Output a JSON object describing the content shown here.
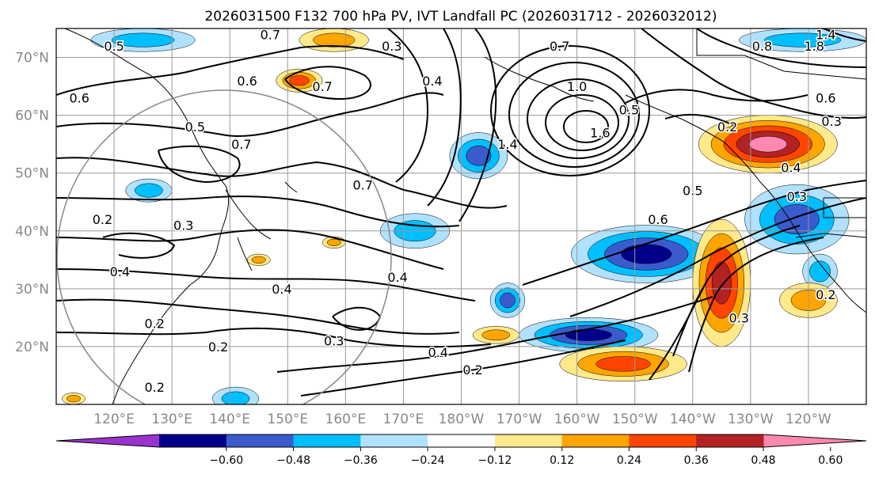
{
  "chart_data": {
    "type": "heatmap",
    "title": "2026031500 F132 700 hPa PV, IVT Landfall PC (2026031712 - 2026032012)",
    "map": {
      "lon_range": [
        110,
        250
      ],
      "lat_range": [
        10,
        75
      ],
      "lon_ticks": [
        {
          "lon": 120,
          "label": "120°E"
        },
        {
          "lon": 130,
          "label": "130°E"
        },
        {
          "lon": 140,
          "label": "140°E"
        },
        {
          "lon": 150,
          "label": "150°E"
        },
        {
          "lon": 160,
          "label": "160°E"
        },
        {
          "lon": 170,
          "label": "170°E"
        },
        {
          "lon": 180,
          "label": "180°W"
        },
        {
          "lon": 190,
          "label": "170°W"
        },
        {
          "lon": 200,
          "label": "160°W"
        },
        {
          "lon": 210,
          "label": "150°W"
        },
        {
          "lon": 220,
          "label": "140°W"
        },
        {
          "lon": 230,
          "label": "130°W"
        },
        {
          "lon": 240,
          "label": "120°W"
        }
      ],
      "lat_ticks": [
        {
          "lat": 20,
          "label": "20°N"
        },
        {
          "lat": 30,
          "label": "30°N"
        },
        {
          "lat": 40,
          "label": "40°N"
        },
        {
          "lat": 50,
          "label": "50°N"
        },
        {
          "lat": 60,
          "label": "60°N"
        },
        {
          "lat": 70,
          "label": "70°N"
        }
      ],
      "grid_lines": true,
      "tick_color": "#888888",
      "reference_circle": {
        "center_lon": 140,
        "center_lat": 35,
        "radius_deg": 25,
        "color": "#888888"
      }
    },
    "colorbar": {
      "orientation": "horizontal",
      "extend": "both",
      "levels": [
        -0.72,
        -0.6,
        -0.48,
        -0.36,
        -0.24,
        -0.12,
        0.12,
        0.24,
        0.36,
        0.48,
        0.6,
        0.72
      ],
      "tick_labels": [
        "−0.60",
        "−0.48",
        "−0.36",
        "−0.24",
        "−0.12",
        "0.12",
        "0.24",
        "0.36",
        "0.48",
        "0.60"
      ],
      "colors": [
        "#9933cc",
        "#00008b",
        "#3a5bcc",
        "#00bfff",
        "#b0e2ff",
        "#ffffff",
        "#ffe98a",
        "#ffa500",
        "#ff4500",
        "#b22222",
        "#ff88b3"
      ]
    },
    "shaded_anomalies": [
      {
        "lon": 183,
        "lat": 53,
        "value": -0.4,
        "rx": 5,
        "ry": 4
      },
      {
        "lon": 126,
        "lat": 47,
        "value": -0.3,
        "rx": 4,
        "ry": 2
      },
      {
        "lon": 172,
        "lat": 40,
        "value": -0.3,
        "rx": 6,
        "ry": 3
      },
      {
        "lon": 188,
        "lat": 28,
        "value": -0.45,
        "rx": 3,
        "ry": 3
      },
      {
        "lon": 212,
        "lat": 36,
        "value": -0.58,
        "rx": 13,
        "ry": 5
      },
      {
        "lon": 202,
        "lat": 22,
        "value": -0.5,
        "rx": 12,
        "ry": 3
      },
      {
        "lon": 238,
        "lat": 42,
        "value": -0.45,
        "rx": 9,
        "ry": 6
      },
      {
        "lon": 242,
        "lat": 33,
        "value": -0.35,
        "rx": 3,
        "ry": 3
      },
      {
        "lon": 141,
        "lat": 11,
        "value": -0.3,
        "rx": 4,
        "ry": 2
      },
      {
        "lon": 239,
        "lat": 73,
        "value": -0.3,
        "rx": 11,
        "ry": 2
      },
      {
        "lon": 125,
        "lat": 73,
        "value": -0.3,
        "rx": 9,
        "ry": 2
      },
      {
        "lon": 158,
        "lat": 73,
        "value": 0.35,
        "rx": 6,
        "ry": 2
      },
      {
        "lon": 152,
        "lat": 66,
        "value": 0.4,
        "rx": 4,
        "ry": 2
      },
      {
        "lon": 233,
        "lat": 55,
        "value": 0.62,
        "rx": 12,
        "ry": 5
      },
      {
        "lon": 225,
        "lat": 31,
        "value": 0.5,
        "rx": 5,
        "ry": 11
      },
      {
        "lon": 208,
        "lat": 17,
        "value": 0.38,
        "rx": 11,
        "ry": 3
      },
      {
        "lon": 186,
        "lat": 22,
        "value": 0.3,
        "rx": 4,
        "ry": 1.5
      },
      {
        "lon": 158,
        "lat": 38,
        "value": 0.3,
        "rx": 2,
        "ry": 1
      },
      {
        "lon": 145,
        "lat": 35,
        "value": 0.35,
        "rx": 2,
        "ry": 1
      },
      {
        "lon": 240,
        "lat": 28,
        "value": 0.3,
        "rx": 5,
        "ry": 3
      },
      {
        "lon": 113,
        "lat": 11,
        "value": 0.3,
        "rx": 2,
        "ry": 1
      }
    ],
    "pv_contour_labels": [
      {
        "text": "0.7",
        "lon": 147,
        "lat": 74
      },
      {
        "text": "0.5",
        "lon": 120,
        "lat": 72
      },
      {
        "text": "0.6",
        "lon": 114,
        "lat": 63
      },
      {
        "text": "0.6",
        "lon": 143,
        "lat": 66
      },
      {
        "text": "0.7",
        "lon": 156,
        "lat": 65
      },
      {
        "text": "0.3",
        "lon": 168,
        "lat": 72
      },
      {
        "text": "0.4",
        "lon": 175,
        "lat": 66
      },
      {
        "text": "0.7",
        "lon": 197,
        "lat": 72
      },
      {
        "text": "0.8",
        "lon": 232,
        "lat": 72
      },
      {
        "text": "1.4",
        "lon": 243,
        "lat": 74
      },
      {
        "text": "1.8",
        "lon": 241,
        "lat": 72
      },
      {
        "text": "1.0",
        "lon": 200,
        "lat": 65
      },
      {
        "text": "0.5",
        "lon": 209,
        "lat": 61
      },
      {
        "text": "1.6",
        "lon": 204,
        "lat": 57
      },
      {
        "text": "1.4",
        "lon": 188,
        "lat": 55
      },
      {
        "text": "0.6",
        "lon": 243,
        "lat": 63
      },
      {
        "text": "0.3",
        "lon": 244,
        "lat": 59
      },
      {
        "text": "0.2",
        "lon": 226,
        "lat": 58
      },
      {
        "text": "0.4",
        "lon": 237,
        "lat": 51
      },
      {
        "text": "0.5",
        "lon": 134,
        "lat": 58
      },
      {
        "text": "0.7",
        "lon": 142,
        "lat": 55
      },
      {
        "text": "0.7",
        "lon": 163,
        "lat": 48
      },
      {
        "text": "0.5",
        "lon": 220,
        "lat": 47
      },
      {
        "text": "0.3",
        "lon": 238,
        "lat": 46
      },
      {
        "text": "0.6",
        "lon": 214,
        "lat": 42
      },
      {
        "text": "0.2",
        "lon": 118,
        "lat": 42
      },
      {
        "text": "0.3",
        "lon": 132,
        "lat": 41
      },
      {
        "text": "0.4",
        "lon": 121,
        "lat": 33
      },
      {
        "text": "0.4",
        "lon": 149,
        "lat": 30
      },
      {
        "text": "0.4",
        "lon": 169,
        "lat": 32
      },
      {
        "text": "0.2",
        "lon": 127,
        "lat": 24
      },
      {
        "text": "0.2",
        "lon": 138,
        "lat": 20
      },
      {
        "text": "0.3",
        "lon": 158,
        "lat": 21
      },
      {
        "text": "0.4",
        "lon": 176,
        "lat": 19
      },
      {
        "text": "0.2",
        "lon": 182,
        "lat": 16
      },
      {
        "text": "0.2",
        "lon": 243,
        "lat": 29
      },
      {
        "text": "0.3",
        "lon": 228,
        "lat": 25
      },
      {
        "text": "0.2",
        "lon": 127,
        "lat": 13
      }
    ]
  }
}
